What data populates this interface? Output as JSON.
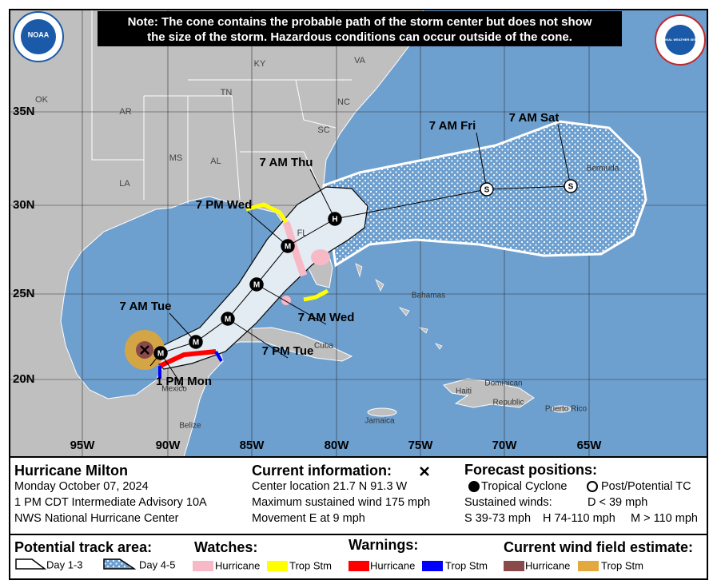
{
  "header": {
    "note_line_1": "Note: The cone contains the probable path of the storm center but does not show",
    "note_line_2": "the size of the storm. Hazardous conditions can occur outside of the cone.",
    "noaa_logo": "NOAA",
    "nws_logo": "NATIONAL WEATHER SERVICE"
  },
  "map": {
    "state_labels": [
      "KY",
      "VA",
      "TN",
      "NC",
      "OK",
      "AR",
      "SC",
      "MS",
      "AL",
      "LA",
      "FL"
    ],
    "place_labels": [
      "Bermuda",
      "Bahamas",
      "Cuba",
      "Haiti",
      "Dominican",
      "Republic",
      "Puerto Rico",
      "Jamaica",
      "Mexico",
      "Belize"
    ],
    "latitude_labels": [
      "35N",
      "30N",
      "25N",
      "20N"
    ],
    "longitude_labels": [
      "95W",
      "90W",
      "85W",
      "80W",
      "75W",
      "70W",
      "65W"
    ],
    "forecast_points": [
      {
        "time": "1 PM Mon",
        "symbol": "M"
      },
      {
        "time": "7 AM Tue",
        "symbol": "M"
      },
      {
        "time": "7 PM Tue",
        "symbol": "M"
      },
      {
        "time": "7 AM Wed",
        "symbol": "M"
      },
      {
        "time": "7 PM Wed",
        "symbol": "M"
      },
      {
        "time": "7 AM Thu",
        "symbol": "H"
      },
      {
        "time": "7 AM Fri",
        "symbol": "S"
      },
      {
        "time": "7 AM Sat",
        "symbol": "S"
      }
    ]
  },
  "info": {
    "storm": {
      "name": "Hurricane Milton",
      "date": "Monday October 07, 2024",
      "advisory": "1 PM CDT Intermediate Advisory 10A",
      "source": "NWS National Hurricane Center"
    },
    "current": {
      "title": "Current information:",
      "center": "Center location 21.7 N 91.3 W",
      "wind": "Maximum sustained wind 175 mph",
      "movement": "Movement E at 9 mph"
    },
    "forecast": {
      "title": "Forecast positions:",
      "tropical": "Tropical Cyclone",
      "post": "Post/Potential TC",
      "winds_title": "Sustained winds:",
      "d": "D < 39 mph",
      "s": "S 39-73 mph",
      "h": "H 74-110 mph",
      "m": "M > 110 mph"
    }
  },
  "legend": {
    "track": {
      "title": "Potential track area:",
      "day13": "Day 1-3",
      "day45": "Day 4-5"
    },
    "watches": {
      "title": "Watches:",
      "hurricane": "Hurricane",
      "storm": "Trop Stm"
    },
    "warnings": {
      "title": "Warnings:",
      "hurricane": "Hurricane",
      "storm": "Trop Stm"
    },
    "wind_field": {
      "title": "Current wind field estimate:",
      "hurricane": "Hurricane",
      "storm": "Trop Stm"
    }
  }
}
